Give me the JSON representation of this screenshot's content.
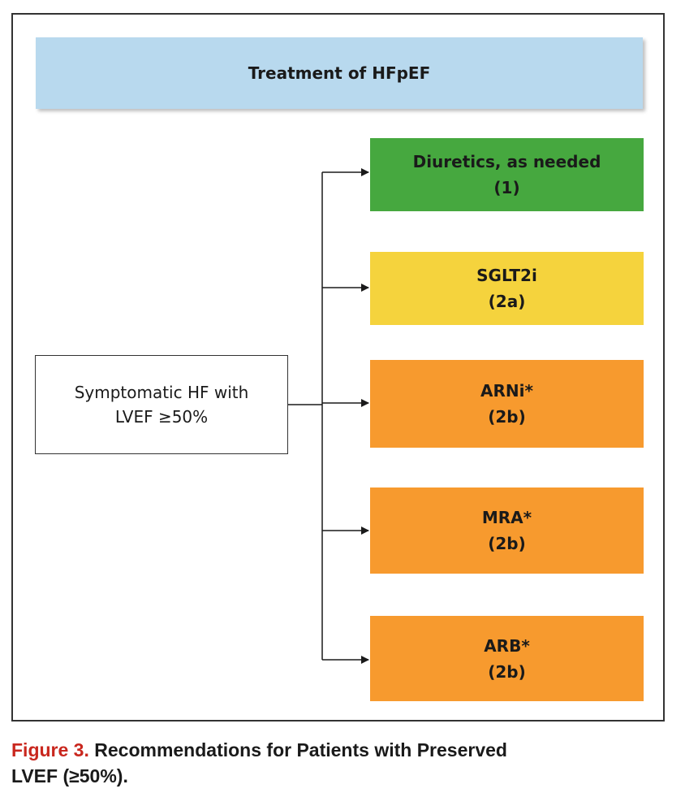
{
  "diagram": {
    "title": "Treatment of HFpEF",
    "source": {
      "line1": "Symptomatic HF with",
      "line2": "LVEF ≥50%"
    },
    "options": [
      {
        "name": "Diuretics, as needed",
        "class": "(1)",
        "color": "#46a83f"
      },
      {
        "name": "SGLT2i",
        "class": "(2a)",
        "color": "#f5d33d"
      },
      {
        "name": "ARNi*",
        "class": "(2b)",
        "color": "#f79a2e"
      },
      {
        "name": "MRA*",
        "class": "(2b)",
        "color": "#f79a2e"
      },
      {
        "name": "ARB*",
        "class": "(2b)",
        "color": "#f79a2e"
      }
    ]
  },
  "caption": {
    "label": "Figure 3.",
    "text_line1": " Recommendations for Patients with Preserved",
    "text_line2": "LVEF (≥50%)."
  }
}
